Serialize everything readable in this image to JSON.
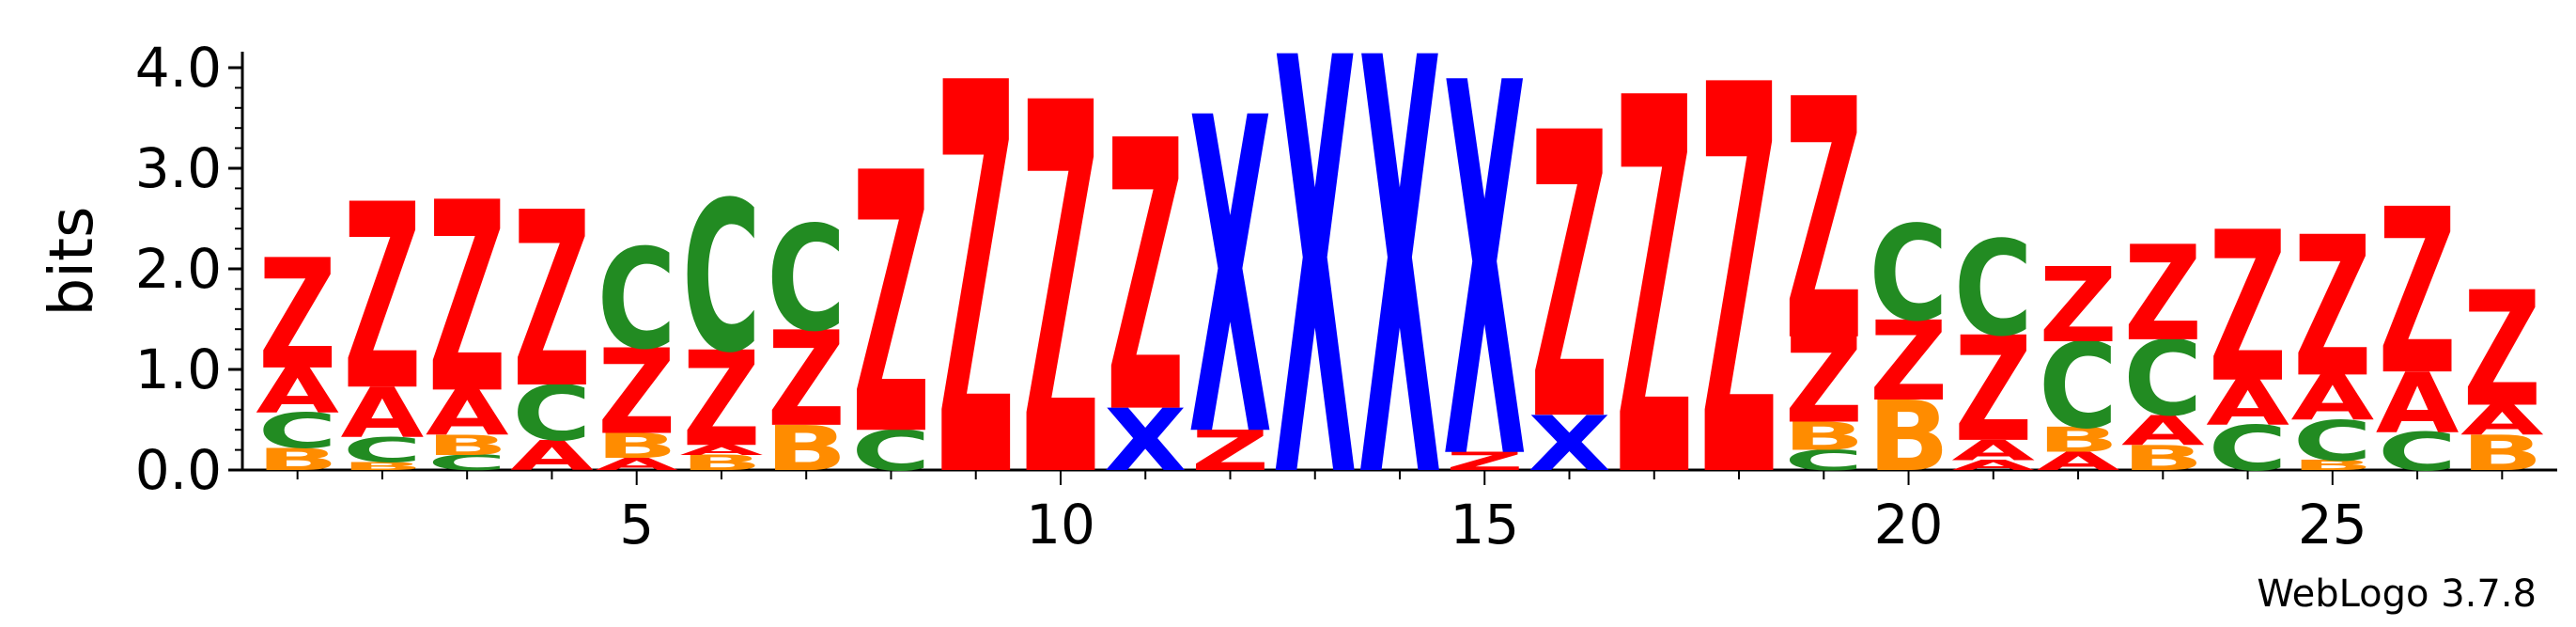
{
  "chart_data": {
    "type": "sequence-logo",
    "ylabel": "bits",
    "ylim": [
      0,
      4.0
    ],
    "y_ticks": [
      "0.0",
      "1.0",
      "2.0",
      "3.0",
      "4.0"
    ],
    "y_tick_values": [
      0,
      1,
      2,
      3,
      4
    ],
    "x_ticks": [
      "5",
      "10",
      "15",
      "20",
      "25"
    ],
    "x_tick_values": [
      5,
      10,
      15,
      20,
      25
    ],
    "positions_count": 27,
    "colors": {
      "Z": "#ff0000",
      "X": "#0000ff",
      "C": "#228b22",
      "A": "#ff0000",
      "B": "#ff8c00"
    },
    "stacks": [
      [
        [
          "B",
          0.22
        ],
        [
          "C",
          0.35
        ],
        [
          "A",
          0.45
        ],
        [
          "Z",
          1.1
        ]
      ],
      [
        [
          "B",
          0.08
        ],
        [
          "C",
          0.25
        ],
        [
          "A",
          0.5
        ],
        [
          "Z",
          1.85
        ]
      ],
      [
        [
          "C",
          0.15
        ],
        [
          "B",
          0.2
        ],
        [
          "A",
          0.45
        ],
        [
          "Z",
          1.9
        ]
      ],
      [
        [
          "A",
          0.3
        ],
        [
          "C",
          0.55
        ],
        [
          "Z",
          1.75
        ]
      ],
      [
        [
          "A",
          0.12
        ],
        [
          "B",
          0.25
        ],
        [
          "Z",
          0.85
        ],
        [
          "C",
          1.0
        ]
      ],
      [
        [
          "B",
          0.15
        ],
        [
          "A",
          0.1
        ],
        [
          "Z",
          0.95
        ],
        [
          "C",
          1.5
        ]
      ],
      [
        [
          "B",
          0.45
        ],
        [
          "Z",
          0.95
        ],
        [
          "C",
          1.05
        ]
      ],
      [
        [
          "C",
          0.4
        ],
        [
          "Z",
          2.6
        ]
      ],
      [
        [
          "Z",
          3.9
        ]
      ],
      [
        [
          "Z",
          3.7
        ]
      ],
      [
        [
          "X",
          0.62
        ],
        [
          "Z",
          2.7
        ]
      ],
      [
        [
          "Z",
          0.4
        ],
        [
          "X",
          3.15
        ]
      ],
      [
        [
          "X",
          4.15
        ]
      ],
      [
        [
          "X",
          4.15
        ]
      ],
      [
        [
          "Z",
          0.18
        ],
        [
          "X",
          3.72
        ]
      ],
      [
        [
          "X",
          0.55
        ],
        [
          "Z",
          2.85
        ]
      ],
      [
        [
          "Z",
          3.75
        ]
      ],
      [
        [
          "Z",
          3.88
        ]
      ],
      [
        [
          "C",
          0.2
        ],
        [
          "B",
          0.28
        ],
        [
          "Z",
          0.85
        ],
        [
          "Z",
          2.4
        ]
      ],
      [
        [
          "B",
          0.7
        ],
        [
          "Z",
          0.8
        ],
        [
          "C",
          0.95
        ]
      ],
      [
        [
          "A",
          0.1
        ],
        [
          "A",
          0.2
        ],
        [
          "Z",
          1.05
        ],
        [
          "C",
          0.95
        ]
      ],
      [
        [
          "A",
          0.18
        ],
        [
          "B",
          0.25
        ],
        [
          "C",
          0.85
        ],
        [
          "Z",
          0.75
        ]
      ],
      [
        [
          "B",
          0.25
        ],
        [
          "A",
          0.3
        ],
        [
          "C",
          0.75
        ],
        [
          "Z",
          0.95
        ]
      ],
      [
        [
          "C",
          0.45
        ],
        [
          "A",
          0.45
        ],
        [
          "Z",
          1.5
        ]
      ],
      [
        [
          "B",
          0.1
        ],
        [
          "C",
          0.4
        ],
        [
          "A",
          0.45
        ],
        [
          "Z",
          1.4
        ]
      ],
      [
        [
          "C",
          0.38
        ],
        [
          "A",
          0.6
        ],
        [
          "Z",
          1.65
        ]
      ],
      [
        [
          "B",
          0.35
        ],
        [
          "A",
          0.3
        ],
        [
          "Z",
          1.15
        ]
      ]
    ]
  },
  "credit": "WebLogo 3.7.8"
}
